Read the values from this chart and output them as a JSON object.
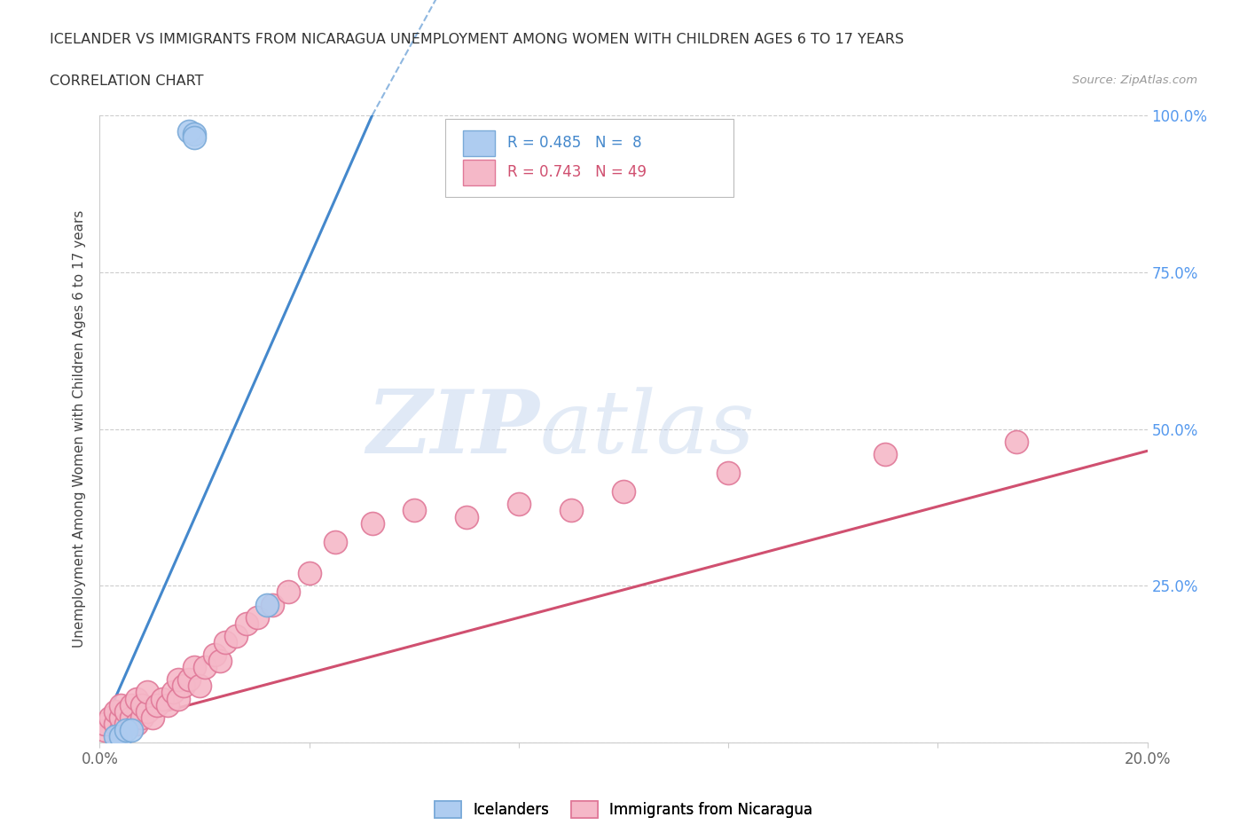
{
  "title_line1": "ICELANDER VS IMMIGRANTS FROM NICARAGUA UNEMPLOYMENT AMONG WOMEN WITH CHILDREN AGES 6 TO 17 YEARS",
  "title_line2": "CORRELATION CHART",
  "source_text": "Source: ZipAtlas.com",
  "ylabel": "Unemployment Among Women with Children Ages 6 to 17 years",
  "xlim": [
    0.0,
    0.2
  ],
  "ylim": [
    0.0,
    1.0
  ],
  "xticks": [
    0.0,
    0.04,
    0.08,
    0.12,
    0.16,
    0.2
  ],
  "xticklabels": [
    "0.0%",
    "",
    "",
    "",
    "",
    "20.0%"
  ],
  "yticks": [
    0.0,
    0.25,
    0.5,
    0.75,
    1.0
  ],
  "right_yticklabels": [
    "",
    "25.0%",
    "50.0%",
    "75.0%",
    "100.0%"
  ],
  "watermark_zip": "ZIP",
  "watermark_atlas": "atlas",
  "blue_color": "#aeccf0",
  "blue_edge": "#7aaad8",
  "pink_color": "#f5b8c8",
  "pink_edge": "#e07898",
  "blue_line_color": "#4488cc",
  "pink_line_color": "#d05070",
  "blue_scatter_x": [
    0.003,
    0.004,
    0.017,
    0.018,
    0.018,
    0.032,
    0.005,
    0.006
  ],
  "blue_scatter_y": [
    0.01,
    0.01,
    0.975,
    0.97,
    0.965,
    0.22,
    0.02,
    0.02
  ],
  "pink_scatter_x": [
    0.001,
    0.001,
    0.002,
    0.003,
    0.003,
    0.004,
    0.004,
    0.004,
    0.005,
    0.005,
    0.006,
    0.006,
    0.007,
    0.007,
    0.008,
    0.008,
    0.009,
    0.009,
    0.01,
    0.011,
    0.012,
    0.013,
    0.014,
    0.015,
    0.015,
    0.016,
    0.017,
    0.018,
    0.019,
    0.02,
    0.022,
    0.023,
    0.024,
    0.026,
    0.028,
    0.03,
    0.033,
    0.036,
    0.04,
    0.045,
    0.052,
    0.06,
    0.07,
    0.08,
    0.09,
    0.1,
    0.12,
    0.15,
    0.175
  ],
  "pink_scatter_y": [
    0.02,
    0.03,
    0.04,
    0.03,
    0.05,
    0.02,
    0.04,
    0.06,
    0.03,
    0.05,
    0.04,
    0.06,
    0.03,
    0.07,
    0.04,
    0.06,
    0.05,
    0.08,
    0.04,
    0.06,
    0.07,
    0.06,
    0.08,
    0.07,
    0.1,
    0.09,
    0.1,
    0.12,
    0.09,
    0.12,
    0.14,
    0.13,
    0.16,
    0.17,
    0.19,
    0.2,
    0.22,
    0.24,
    0.27,
    0.32,
    0.35,
    0.37,
    0.36,
    0.38,
    0.37,
    0.4,
    0.43,
    0.46,
    0.48
  ],
  "blue_line_x": [
    0.0,
    0.052
  ],
  "blue_line_y": [
    0.015,
    1.0
  ],
  "pink_line_x": [
    0.0,
    0.2
  ],
  "pink_line_y": [
    0.022,
    0.465
  ],
  "blue_R": "0.485",
  "blue_N": " 8",
  "pink_R": "0.743",
  "pink_N": "49",
  "legend_blue_label": "Icelanders",
  "legend_pink_label": "Immigrants from Nicaragua",
  "background_color": "#ffffff",
  "grid_color": "#cccccc",
  "right_tick_color": "#5599ee",
  "title_color": "#333333",
  "source_color": "#999999"
}
